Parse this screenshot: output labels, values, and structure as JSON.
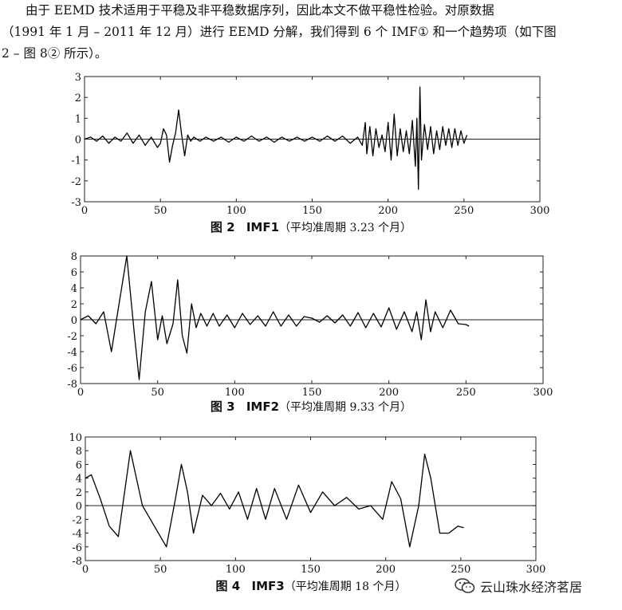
{
  "intro": {
    "line1": "由于 EEMD 技术适用于平稳及非平稳数据序列，因此本文不做平稳性检验。对原数据",
    "line2": "（1991 年 1 月 – 2011 年 12 月）进行 EEMD 分解，我们得到 6 个 IMF① 和一个趋势项（如下图",
    "line3": "2 – 图 8② 所示）。"
  },
  "captions": [
    {
      "label": "图 2",
      "name": "IMF1",
      "note": "（平均准周期 3.23 个月）"
    },
    {
      "label": "图 3",
      "name": "IMF2",
      "note": "（平均准周期 9.33 个月）"
    },
    {
      "label": "图 4",
      "name": "IMF3",
      "note": "（平均准周期 18 个月）"
    }
  ],
  "watermark": {
    "text": "云山珠水经济茗居",
    "icon": "wechat-icon"
  },
  "chart_data": [
    {
      "type": "line",
      "title": "IMF1",
      "xlim": [
        0,
        300
      ],
      "ylim": [
        -3,
        3
      ],
      "xticks": [
        0,
        50,
        100,
        150,
        200,
        250,
        300
      ],
      "yticks": [
        3,
        2,
        1,
        0,
        -1,
        -2,
        -3
      ],
      "series": [
        {
          "x": [
            0,
            4,
            8,
            12,
            16,
            20,
            24,
            28,
            32,
            36,
            40,
            44,
            48,
            50,
            52,
            54,
            56,
            58,
            60,
            62,
            64,
            66,
            68,
            70,
            72,
            76,
            80,
            85,
            90,
            95,
            100,
            105,
            110,
            115,
            120,
            125,
            130,
            135,
            140,
            145,
            150,
            155,
            160,
            165,
            170,
            175,
            180,
            183,
            185,
            186,
            188,
            190,
            192,
            194,
            196,
            198,
            200,
            202,
            204,
            206,
            208,
            210,
            212,
            214,
            216,
            218,
            219,
            220,
            221,
            222,
            224,
            226,
            228,
            230,
            232,
            234,
            236,
            238,
            240,
            242,
            244,
            246,
            248,
            250,
            252
          ],
          "y": [
            0,
            0.1,
            -0.1,
            0.15,
            -0.2,
            0.1,
            -0.1,
            0.3,
            -0.2,
            0.2,
            -0.3,
            0.1,
            -0.4,
            -0.2,
            0.5,
            0.2,
            -1.1,
            -0.3,
            0.3,
            1.4,
            0.2,
            -0.8,
            0.2,
            -0.1,
            0.1,
            -0.1,
            0.1,
            -0.1,
            0.1,
            -0.15,
            0.1,
            -0.1,
            0.15,
            -0.1,
            0.1,
            -0.15,
            0.1,
            -0.1,
            0.1,
            -0.1,
            0.1,
            -0.1,
            0.15,
            -0.1,
            0.15,
            -0.2,
            0.1,
            -0.3,
            0.8,
            -0.7,
            0.6,
            -0.8,
            0.5,
            -0.4,
            0.2,
            -0.6,
            0.8,
            -1.0,
            1.2,
            -0.8,
            0.5,
            -0.6,
            0.4,
            -0.7,
            0.9,
            -1.3,
            1.0,
            -2.4,
            2.5,
            -1.0,
            0.7,
            -0.5,
            0.6,
            -0.7,
            0.4,
            -0.5,
            0.6,
            -0.3,
            0.5,
            -0.4,
            0.5,
            -0.3,
            0.4,
            -0.2,
            0.2
          ]
        }
      ]
    },
    {
      "type": "line",
      "title": "IMF2",
      "xlim": [
        0,
        300
      ],
      "ylim": [
        -8,
        8
      ],
      "xticks": [
        0,
        50,
        100,
        150,
        200,
        250,
        300
      ],
      "yticks": [
        8,
        6,
        4,
        2,
        0,
        -2,
        -4,
        -6,
        -8
      ],
      "series": [
        {
          "x": [
            0,
            5,
            10,
            15,
            20,
            25,
            30,
            35,
            38,
            42,
            46,
            50,
            53,
            56,
            60,
            63,
            66,
            69,
            72,
            75,
            78,
            82,
            86,
            90,
            95,
            100,
            105,
            110,
            115,
            120,
            125,
            130,
            135,
            140,
            145,
            150,
            155,
            160,
            165,
            170,
            175,
            180,
            185,
            190,
            195,
            200,
            205,
            210,
            215,
            218,
            221,
            224,
            227,
            230,
            235,
            240,
            245,
            250,
            252
          ],
          "y": [
            0,
            0.5,
            -0.5,
            1,
            -4,
            2,
            8,
            -2,
            -7.5,
            1,
            4.8,
            -2.5,
            0.5,
            -3,
            -0.5,
            5,
            -2,
            -4.2,
            2,
            -1,
            0.8,
            -0.8,
            0.8,
            -0.8,
            0.6,
            -1,
            0.8,
            -0.6,
            0.5,
            -0.8,
            1,
            -0.8,
            0.6,
            -0.8,
            0.4,
            0.2,
            -0.3,
            0.5,
            -0.4,
            0.6,
            -0.8,
            0.9,
            -1,
            0.8,
            -0.9,
            1.5,
            -1.2,
            1,
            -1.5,
            1,
            -2.5,
            2.5,
            -1.5,
            1,
            -1,
            1.2,
            -0.5,
            -0.6,
            -0.8
          ]
        }
      ]
    },
    {
      "type": "line",
      "title": "IMF3",
      "xlim": [
        0,
        300
      ],
      "ylim": [
        -8,
        10
      ],
      "xticks": [
        0,
        50,
        100,
        150,
        200,
        250,
        300
      ],
      "yticks": [
        10,
        8,
        6,
        4,
        2,
        0,
        -2,
        -4,
        -6,
        -8
      ],
      "series": [
        {
          "x": [
            0,
            4,
            10,
            16,
            22,
            30,
            38,
            46,
            54,
            60,
            64,
            68,
            72,
            78,
            84,
            90,
            96,
            102,
            108,
            114,
            120,
            126,
            134,
            142,
            150,
            158,
            166,
            174,
            182,
            190,
            198,
            204,
            210,
            216,
            222,
            226,
            230,
            236,
            242,
            248,
            252
          ],
          "y": [
            4,
            4.5,
            1,
            -3,
            -4.5,
            8,
            0,
            -3,
            -6,
            1,
            6,
            2,
            -4,
            1.5,
            0,
            1.8,
            -0.5,
            2,
            -2,
            2.5,
            -2,
            2.5,
            -2,
            3,
            -1,
            2,
            0,
            1.2,
            -0.5,
            0,
            -2,
            3.5,
            1,
            -6,
            0,
            7.5,
            4,
            -4,
            -4,
            -3,
            -3.2
          ]
        }
      ]
    }
  ]
}
